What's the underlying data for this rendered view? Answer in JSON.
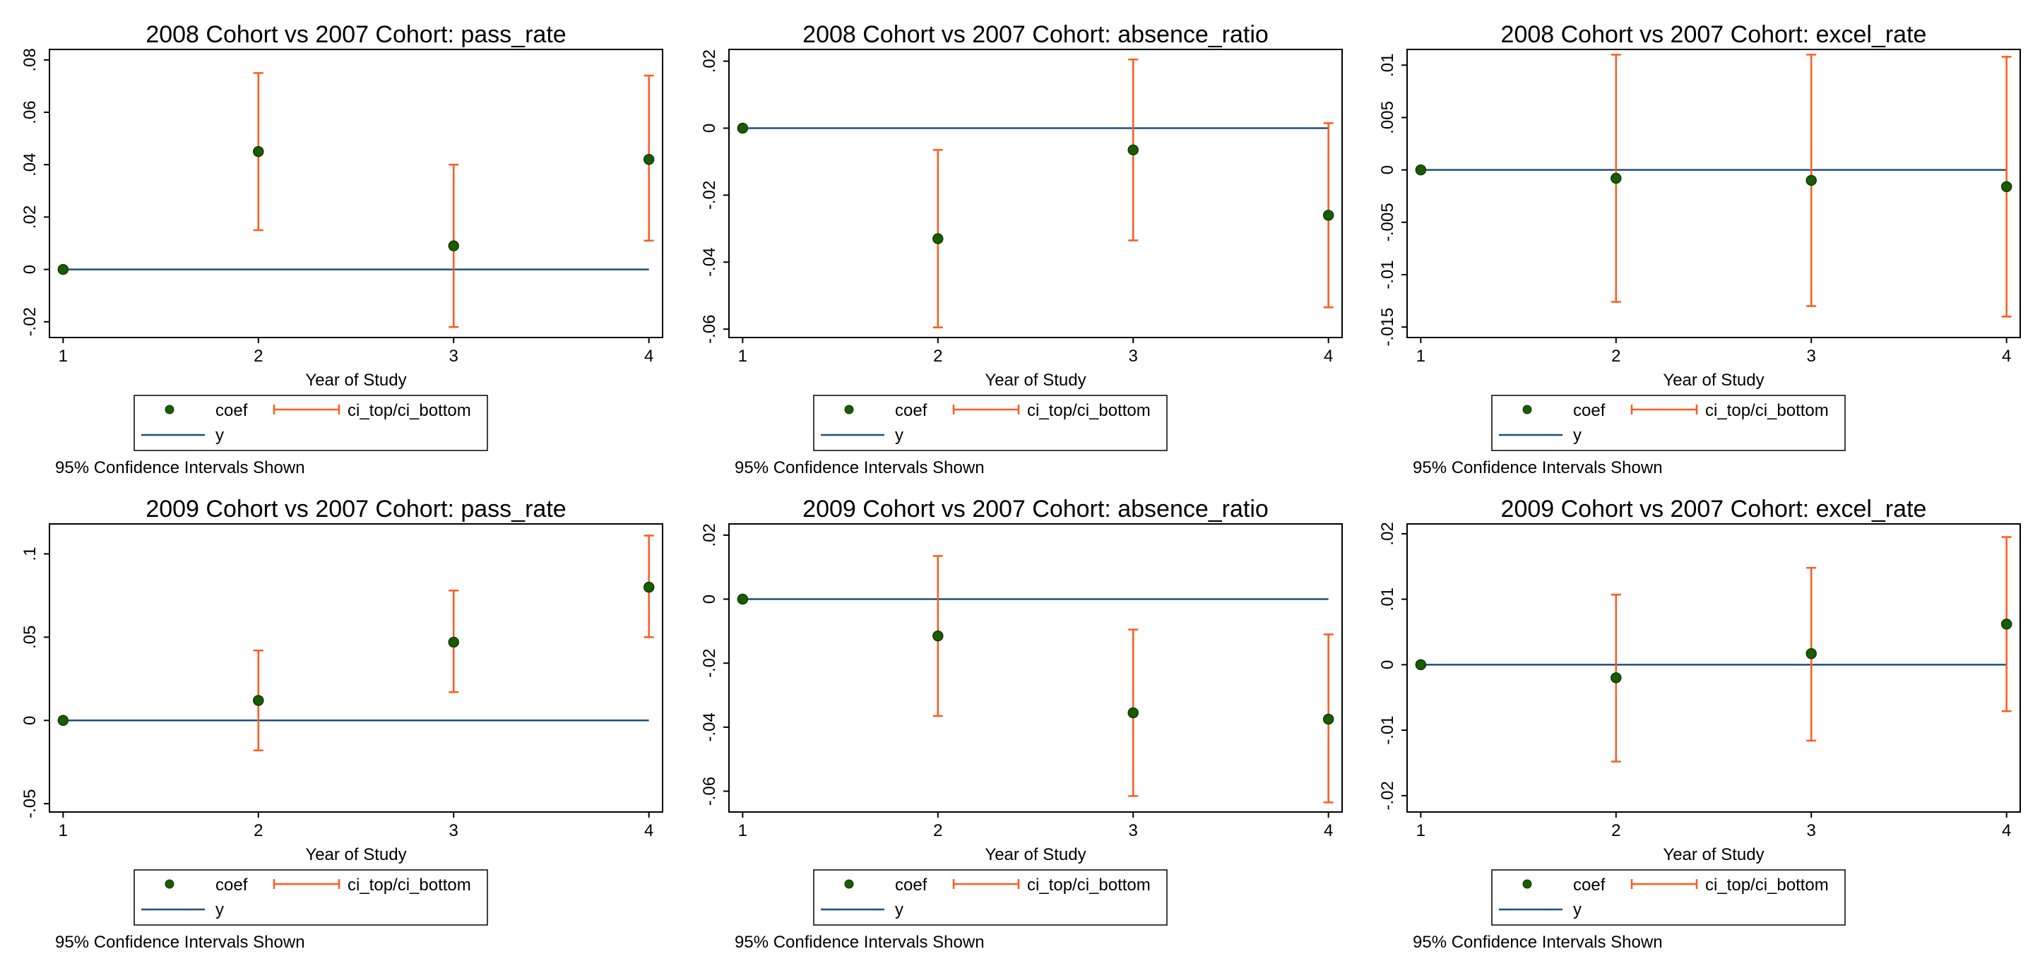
{
  "colors": {
    "coef": "#1a5c00",
    "coef_stroke": "#0f3a00",
    "ci": "#ff5a1f",
    "ref_line": "#1f4e79",
    "axis": "#000000"
  },
  "chart_data": [
    {
      "type": "scatter",
      "title": "2008 Cohort vs 2007 Cohort: pass_rate",
      "xlabel": "Year of Study",
      "note": "95% Confidence Intervals Shown",
      "x": [
        1,
        2,
        3,
        4
      ],
      "xticks": [
        "1",
        "2",
        "3",
        "4"
      ],
      "ylim": [
        -0.026,
        0.084
      ],
      "yticks": [
        -0.02,
        0,
        0.02,
        0.04,
        0.06,
        0.08
      ],
      "ytick_labels": [
        "-.02",
        "0",
        ".02",
        ".04",
        ".06",
        ".08"
      ],
      "ref_y": 0,
      "coef": [
        0,
        0.045,
        0.009,
        0.042
      ],
      "ci_top": [
        null,
        0.075,
        0.04,
        0.074
      ],
      "ci_bottom": [
        null,
        0.015,
        -0.022,
        0.011
      ],
      "legend": {
        "coef": "coef",
        "ci": "ci_top/ci_bottom",
        "y": "y"
      }
    },
    {
      "type": "scatter",
      "title": "2008 Cohort vs 2007 Cohort: absence_ratio",
      "xlabel": "Year of Study",
      "note": "95% Confidence Intervals Shown",
      "x": [
        1,
        2,
        3,
        4
      ],
      "xticks": [
        "1",
        "2",
        "3",
        "4"
      ],
      "ylim": [
        -0.0625,
        0.0235
      ],
      "yticks": [
        -0.06,
        -0.04,
        -0.02,
        0,
        0.02
      ],
      "ytick_labels": [
        "-.06",
        "-.04",
        "-.02",
        "0",
        ".02"
      ],
      "ref_y": 0,
      "coef": [
        0,
        -0.033,
        -0.0065,
        -0.026
      ],
      "ci_top": [
        null,
        -0.0065,
        0.0205,
        0.0015
      ],
      "ci_bottom": [
        null,
        -0.0595,
        -0.0335,
        -0.0535
      ],
      "legend": {
        "coef": "coef",
        "ci": "ci_top/ci_bottom",
        "y": "y"
      }
    },
    {
      "type": "scatter",
      "title": "2008 Cohort vs 2007 Cohort: excel_rate",
      "xlabel": "Year of Study",
      "note": "95% Confidence Intervals Shown",
      "x": [
        1,
        2,
        3,
        4
      ],
      "xticks": [
        "1",
        "2",
        "3",
        "4"
      ],
      "ylim": [
        -0.016,
        0.0115
      ],
      "yticks": [
        -0.015,
        -0.01,
        -0.005,
        0,
        0.005,
        0.01
      ],
      "ytick_labels": [
        "-.015",
        "-.01",
        "-.005",
        "0",
        ".005",
        ".01"
      ],
      "ref_y": 0,
      "coef": [
        0,
        -0.0008,
        -0.001,
        -0.0016
      ],
      "ci_top": [
        null,
        0.011,
        0.011,
        0.0108
      ],
      "ci_bottom": [
        null,
        -0.0126,
        -0.013,
        -0.014
      ],
      "legend": {
        "coef": "coef",
        "ci": "ci_top/ci_bottom",
        "y": "y"
      }
    },
    {
      "type": "scatter",
      "title": "2009 Cohort vs 2007 Cohort: pass_rate",
      "xlabel": "Year of Study",
      "note": "95% Confidence Intervals Shown",
      "x": [
        1,
        2,
        3,
        4
      ],
      "xticks": [
        "1",
        "2",
        "3",
        "4"
      ],
      "ylim": [
        -0.055,
        0.118
      ],
      "yticks": [
        -0.05,
        0,
        0.05,
        0.1
      ],
      "ytick_labels": [
        "-.05",
        "0",
        ".05",
        ".1"
      ],
      "ref_y": 0,
      "coef": [
        0,
        0.012,
        0.047,
        0.08
      ],
      "ci_top": [
        null,
        0.042,
        0.078,
        0.111
      ],
      "ci_bottom": [
        null,
        -0.018,
        0.017,
        0.05
      ],
      "legend": {
        "coef": "coef",
        "ci": "ci_top/ci_bottom",
        "y": "y"
      }
    },
    {
      "type": "scatter",
      "title": "2009 Cohort vs 2007 Cohort: absence_ratio",
      "xlabel": "Year of Study",
      "note": "95% Confidence Intervals Shown",
      "x": [
        1,
        2,
        3,
        4
      ],
      "xticks": [
        "1",
        "2",
        "3",
        "4"
      ],
      "ylim": [
        -0.0665,
        0.0235
      ],
      "yticks": [
        -0.06,
        -0.04,
        -0.02,
        0,
        0.02
      ],
      "ytick_labels": [
        "-.06",
        "-.04",
        "-.02",
        "0",
        ".02"
      ],
      "ref_y": 0,
      "coef": [
        0,
        -0.0115,
        -0.0355,
        -0.0375
      ],
      "ci_top": [
        null,
        0.0135,
        -0.0095,
        -0.011
      ],
      "ci_bottom": [
        null,
        -0.0365,
        -0.0615,
        -0.0635
      ],
      "legend": {
        "coef": "coef",
        "ci": "ci_top/ci_bottom",
        "y": "y"
      }
    },
    {
      "type": "scatter",
      "title": "2009 Cohort vs 2007 Cohort: excel_rate",
      "xlabel": "Year of Study",
      "note": "95% Confidence Intervals Shown",
      "x": [
        1,
        2,
        3,
        4
      ],
      "xticks": [
        "1",
        "2",
        "3",
        "4"
      ],
      "ylim": [
        -0.0225,
        0.0215
      ],
      "yticks": [
        -0.02,
        -0.01,
        0,
        0.01,
        0.02
      ],
      "ytick_labels": [
        "-.02",
        "-.01",
        "0",
        ".01",
        ".02"
      ],
      "ref_y": 0,
      "coef": [
        0,
        -0.002,
        0.0017,
        0.0062
      ],
      "ci_top": [
        null,
        0.0107,
        0.0148,
        0.0195
      ],
      "ci_bottom": [
        null,
        -0.0148,
        -0.0116,
        -0.0071
      ],
      "legend": {
        "coef": "coef",
        "ci": "ci_top/ci_bottom",
        "y": "y"
      }
    }
  ]
}
